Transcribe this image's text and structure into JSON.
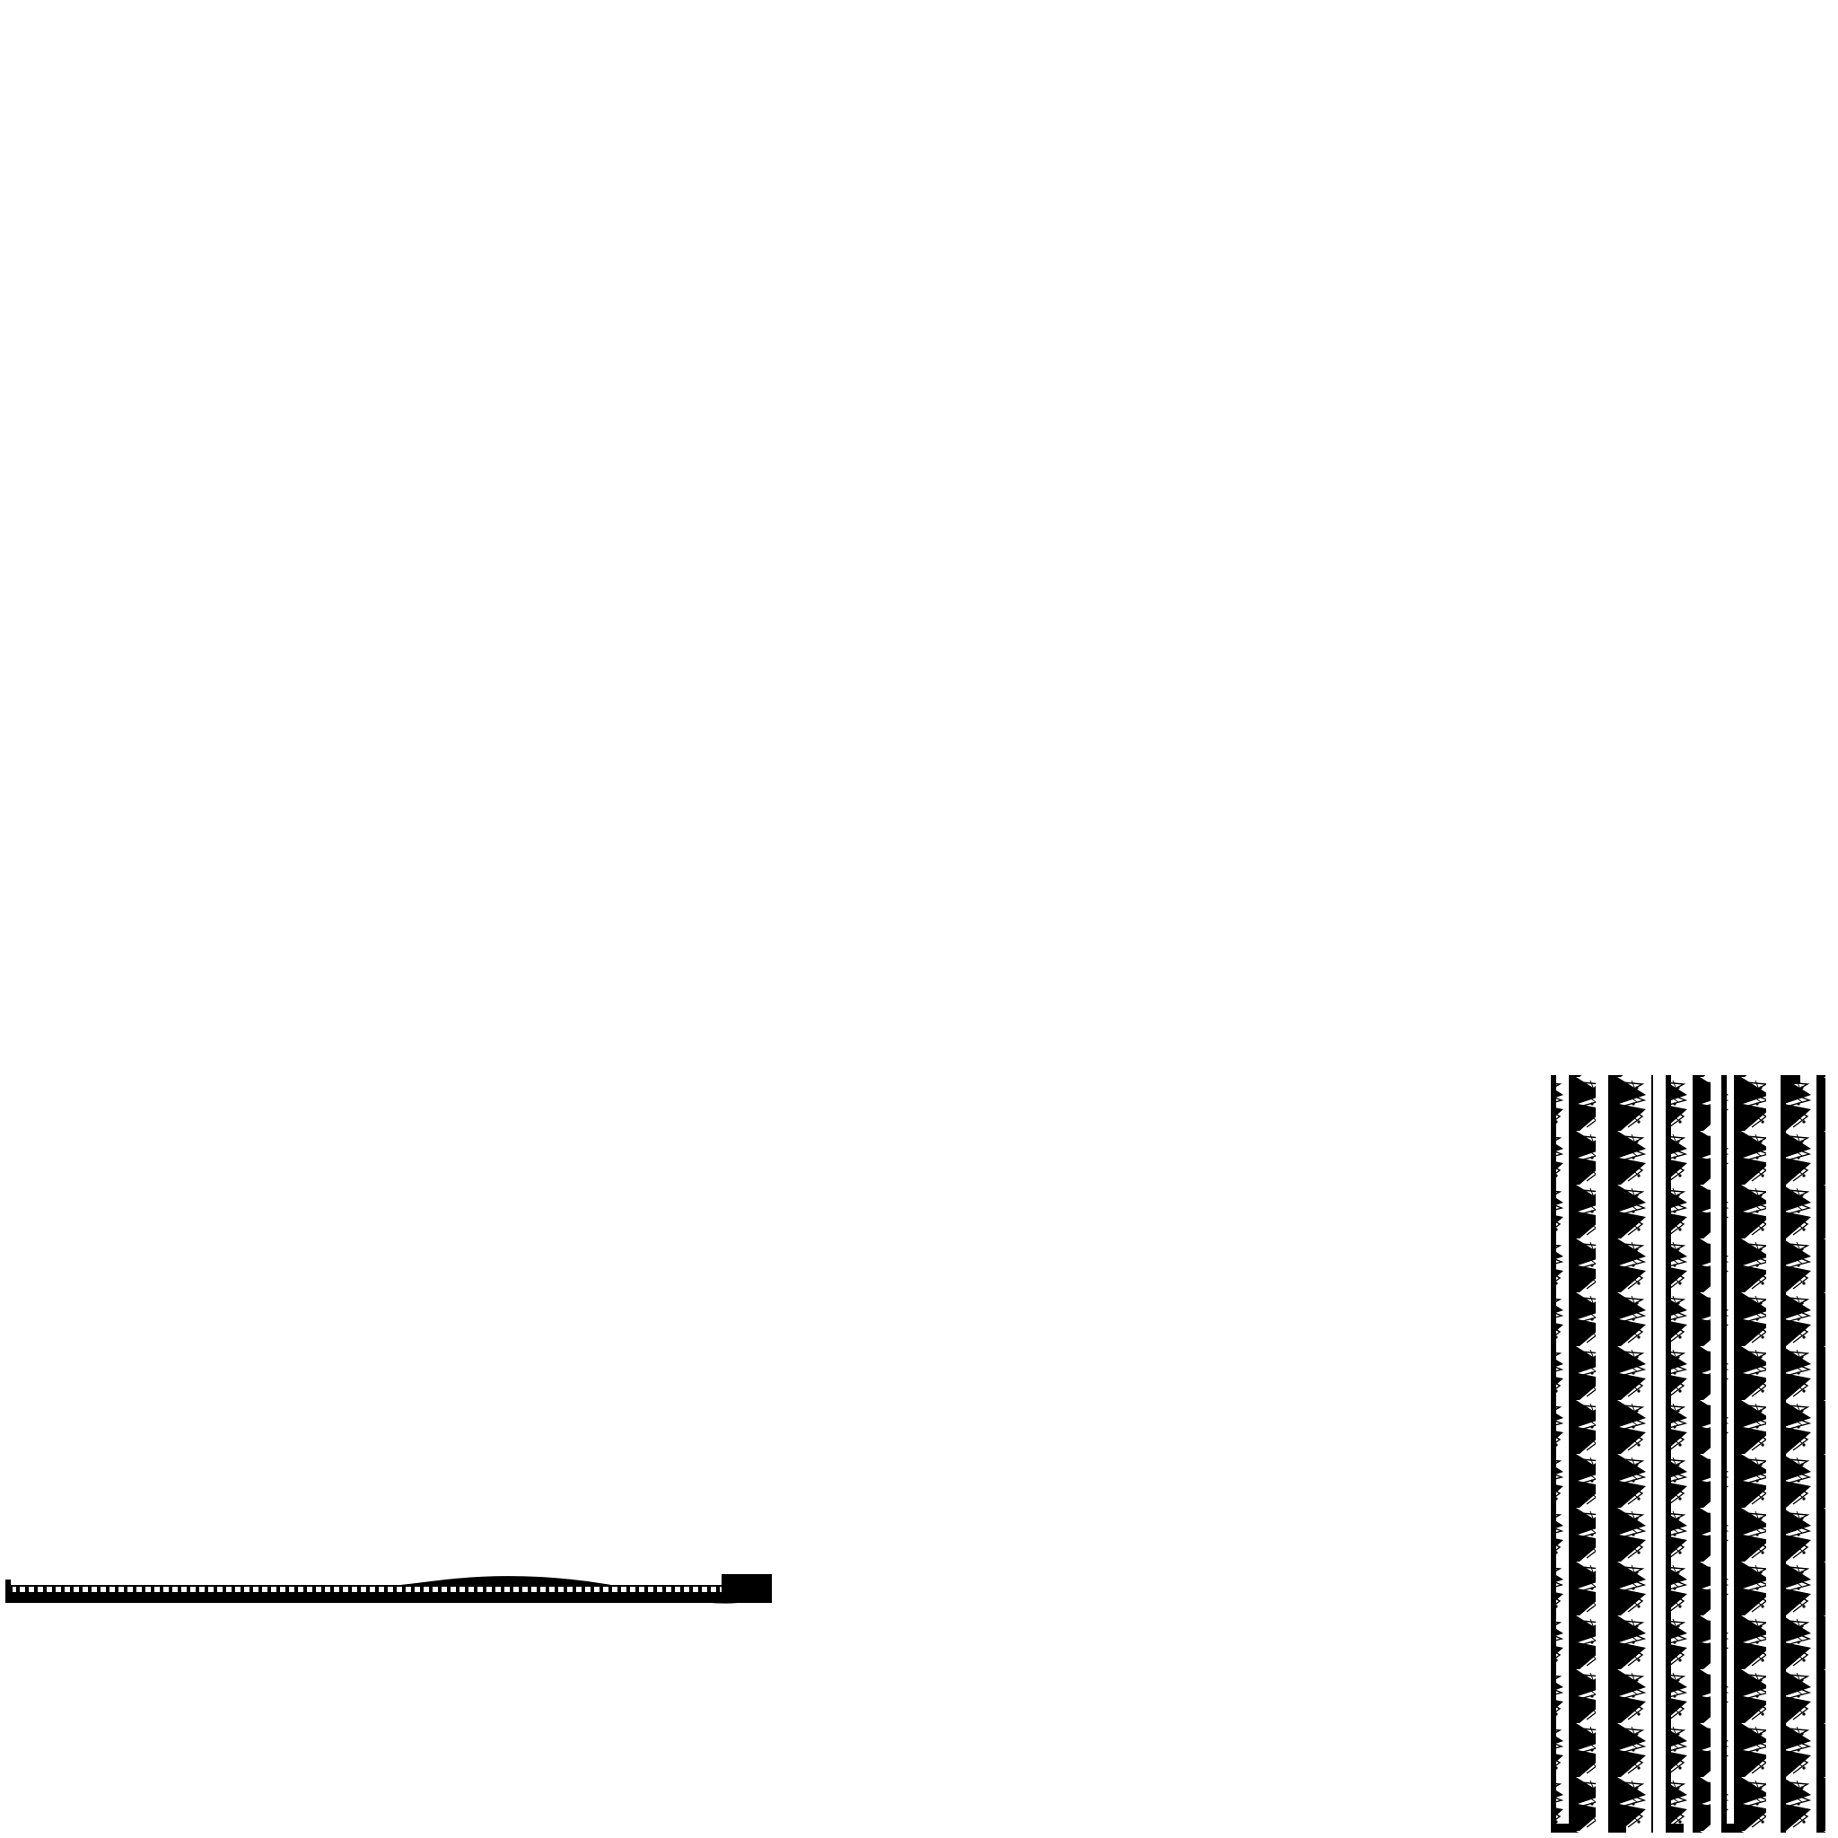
{
  "palette": {
    "background": "#ffffff",
    "ink": "#000000",
    "lace": "#ffffff"
  },
  "horizontal_strip": {
    "name": "horizontal-scalloped-strip"
  },
  "vertical_strips": {
    "count": 5,
    "names": [
      "lace-strip-1",
      "lace-strip-2",
      "lace-strip-3",
      "lace-strip-4",
      "lace-strip-5"
    ]
  }
}
